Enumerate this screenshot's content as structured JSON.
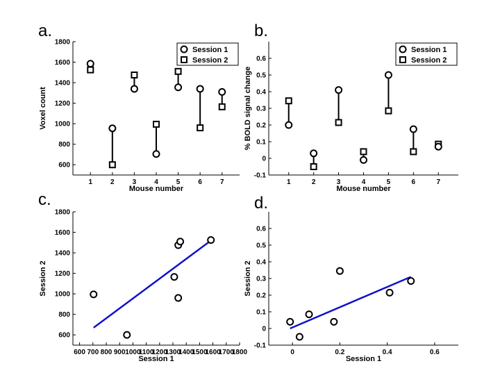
{
  "chart_data": [
    {
      "id": "a",
      "panel_label": "a.",
      "type": "scatter",
      "subtype": "paired-dumbbell",
      "xlabel": "Mouse number",
      "ylabel": "Voxel count",
      "xlim": [
        0.2,
        7.8
      ],
      "ylim": [
        500,
        1800
      ],
      "x": [
        1,
        2,
        3,
        4,
        5,
        6,
        7
      ],
      "xticks": [
        1,
        2,
        3,
        4,
        5,
        6,
        7
      ],
      "yticks": [
        600,
        800,
        1000,
        1200,
        1400,
        1600,
        1800
      ],
      "series": [
        {
          "name": "Session 1",
          "marker": "circle",
          "values": [
            1585,
            955,
            1340,
            705,
            1355,
            1340,
            1310
          ]
        },
        {
          "name": "Session 2",
          "marker": "square",
          "values": [
            1525,
            600,
            1475,
            995,
            1510,
            960,
            1165
          ]
        }
      ],
      "legend": {
        "position": "top-right",
        "entries": [
          "Session 1",
          "Session 2"
        ]
      }
    },
    {
      "id": "b",
      "panel_label": "b.",
      "type": "scatter",
      "subtype": "paired-dumbbell",
      "xlabel": "Mouse number",
      "ylabel": "% BOLD signal change",
      "xlim": [
        0.2,
        7.8
      ],
      "ylim": [
        -0.1,
        0.7
      ],
      "x": [
        1,
        2,
        3,
        4,
        5,
        6,
        7
      ],
      "xticks": [
        1,
        2,
        3,
        4,
        5,
        6,
        7
      ],
      "yticks": [
        -0.1,
        0,
        0.1,
        0.2,
        0.3,
        0.4,
        0.5,
        0.6
      ],
      "series": [
        {
          "name": "Session 1",
          "marker": "circle",
          "values": [
            0.2,
            0.03,
            0.41,
            -0.01,
            0.5,
            0.175,
            0.07
          ]
        },
        {
          "name": "Session 2",
          "marker": "square",
          "values": [
            0.345,
            -0.05,
            0.215,
            0.04,
            0.285,
            0.04,
            0.085
          ]
        }
      ],
      "legend": {
        "position": "top-right",
        "entries": [
          "Session 1",
          "Session 2"
        ]
      }
    },
    {
      "id": "c",
      "panel_label": "c.",
      "type": "scatter",
      "xlabel": "Session 1",
      "ylabel": "Session 2",
      "xlim": [
        550,
        1800
      ],
      "ylim": [
        500,
        1800
      ],
      "xticks": [
        600,
        700,
        800,
        900,
        1000,
        1100,
        1200,
        1300,
        1400,
        1500,
        1600,
        1700,
        1800
      ],
      "yticks": [
        600,
        800,
        1000,
        1200,
        1400,
        1600,
        1800
      ],
      "points": {
        "x": [
          1585,
          955,
          1340,
          705,
          1355,
          1340,
          1310
        ],
        "y": [
          1525,
          600,
          1475,
          995,
          1510,
          960,
          1165
        ]
      },
      "fit_line": {
        "x": [
          705,
          1585
        ],
        "y": [
          670,
          1520
        ],
        "color": "#1010cc"
      }
    },
    {
      "id": "d",
      "panel_label": "d.",
      "type": "scatter",
      "xlabel": "Session 1",
      "ylabel": "Session 2",
      "xlim": [
        -0.1,
        0.7
      ],
      "ylim": [
        -0.1,
        0.7
      ],
      "xticks": [
        0,
        0.2,
        0.4,
        0.6
      ],
      "yticks": [
        -0.1,
        0,
        0.1,
        0.2,
        0.3,
        0.4,
        0.5,
        0.6
      ],
      "points": {
        "x": [
          0.2,
          0.03,
          0.41,
          -0.01,
          0.5,
          0.175,
          0.07
        ],
        "y": [
          0.345,
          -0.05,
          0.215,
          0.04,
          0.285,
          0.04,
          0.085
        ]
      },
      "fit_line": {
        "x": [
          -0.01,
          0.5
        ],
        "y": [
          0.0,
          0.31
        ],
        "color": "#1010cc"
      }
    }
  ]
}
